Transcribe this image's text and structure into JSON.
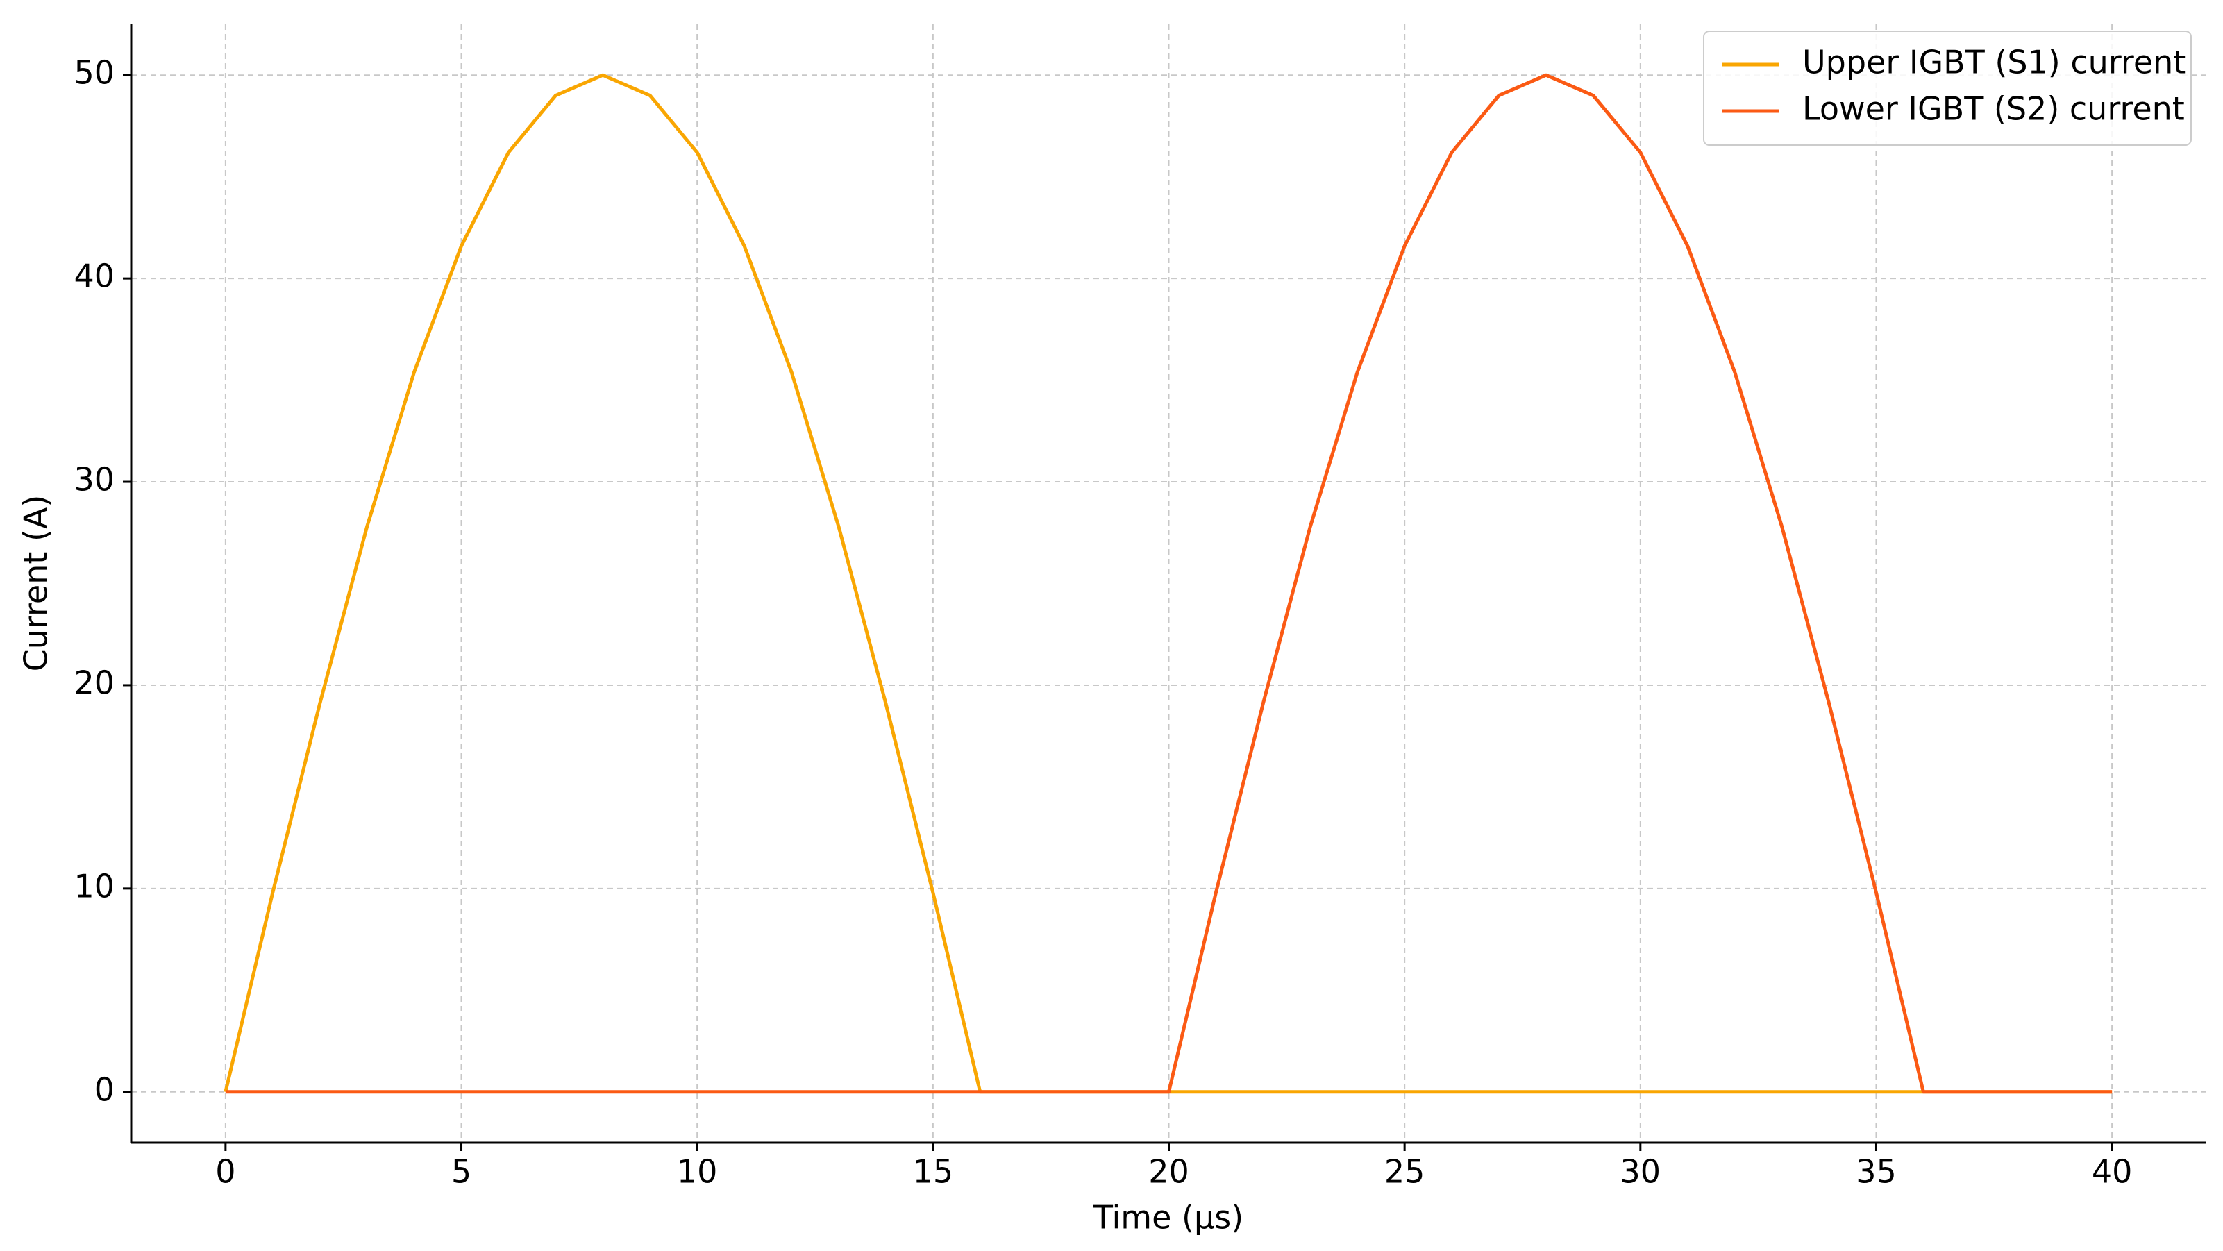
{
  "chart_data": {
    "type": "line",
    "xlabel": "Time (µs)",
    "ylabel": "Current (A)",
    "x": [
      0,
      1,
      2,
      3,
      4,
      5,
      6,
      7,
      8,
      9,
      10,
      11,
      12,
      13,
      14,
      15,
      16,
      17,
      18,
      19,
      20,
      21,
      22,
      23,
      24,
      25,
      26,
      27,
      28,
      29,
      30,
      31,
      32,
      33,
      34,
      35,
      36,
      37,
      38,
      39,
      40
    ],
    "series": [
      {
        "name": "Upper IGBT (S1) current",
        "color": "#f9a602",
        "values": [
          0,
          9.8,
          19.1,
          27.8,
          35.4,
          41.6,
          46.2,
          49.0,
          50,
          49.0,
          46.2,
          41.6,
          35.4,
          27.8,
          19.1,
          9.8,
          0,
          0,
          0,
          0,
          0,
          0,
          0,
          0,
          0,
          0,
          0,
          0,
          0,
          0,
          0,
          0,
          0,
          0,
          0,
          0,
          0,
          0,
          0,
          0,
          0
        ]
      },
      {
        "name": "Lower IGBT (S2) current",
        "color": "#fb5a14",
        "values": [
          0,
          0,
          0,
          0,
          0,
          0,
          0,
          0,
          0,
          0,
          0,
          0,
          0,
          0,
          0,
          0,
          0,
          0,
          0,
          0,
          0,
          9.8,
          19.1,
          27.8,
          35.4,
          41.6,
          46.2,
          49.0,
          50,
          49.0,
          46.2,
          41.6,
          35.4,
          27.8,
          19.1,
          9.8,
          0,
          0,
          0,
          0,
          0
        ]
      }
    ],
    "xlim": [
      -2,
      42
    ],
    "xticks": [
      0,
      5,
      10,
      15,
      20,
      25,
      30,
      35,
      40
    ],
    "ylim": [
      -2.5,
      52.5
    ],
    "yticks": [
      0,
      10,
      20,
      30,
      40,
      50
    ],
    "grid": true,
    "legend": "upper-right"
  }
}
